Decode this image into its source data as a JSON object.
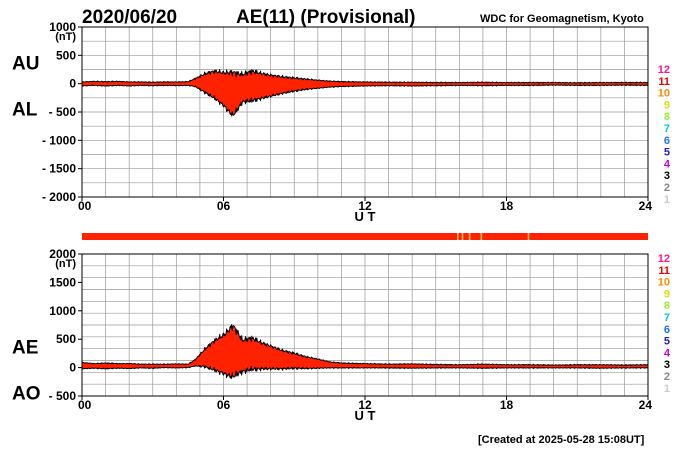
{
  "header": {
    "date": "2020/06/20",
    "title": "AE(11) (Provisional)",
    "source": "WDC for Geomagnetism, Kyoto"
  },
  "footer": {
    "created": "[Created at 2025-05-28 15:08UT]"
  },
  "colors": {
    "fill": "#ff2200",
    "outline": "#000000",
    "grid": "#999999",
    "bar_main": "#ff2200",
    "bar_gap": "#ffbb66"
  },
  "station_legend": [
    {
      "label": "12",
      "color": "#ff1493"
    },
    {
      "label": "11",
      "color": "#ee0000"
    },
    {
      "label": "10",
      "color": "#ff8c00"
    },
    {
      "label": "9",
      "color": "#dddd00"
    },
    {
      "label": "8",
      "color": "#99ee33"
    },
    {
      "label": "7",
      "color": "#00ccdd"
    },
    {
      "label": "6",
      "color": "#1e6fff"
    },
    {
      "label": "5",
      "color": "#2020cc"
    },
    {
      "label": "4",
      "color": "#cc00cc"
    },
    {
      "label": "3",
      "color": "#000000"
    },
    {
      "label": "2",
      "color": "#888888"
    },
    {
      "label": "1",
      "color": "#cccccc"
    }
  ],
  "chart_data": [
    {
      "type": "area",
      "name": "upper",
      "upper_label": "AU",
      "lower_label": "AL",
      "unit_label": "(nT)",
      "xlabel": "U T",
      "xlim": [
        0,
        24
      ],
      "ylim": [
        -2000,
        1000
      ],
      "x_ticks": [
        0,
        6,
        12,
        18,
        24
      ],
      "x_tick_labels": [
        "00",
        "06",
        "12",
        "18",
        "24"
      ],
      "y_ticks": [
        1000,
        500,
        0,
        -500,
        -1000,
        -1500,
        -2000
      ],
      "y_tick_labels": [
        "1000",
        "500",
        "0",
        "- 500",
        "- 1000",
        "- 1500",
        "- 2000"
      ],
      "grid": true,
      "series": [
        {
          "name": "AU",
          "x": [
            0,
            0.5,
            1,
            1.5,
            2,
            2.5,
            3,
            3.5,
            4,
            4.5,
            4.8,
            5.2,
            5.6,
            6,
            6.4,
            6.8,
            7.2,
            7.6,
            8,
            8.5,
            9,
            9.5,
            10,
            10.5,
            11,
            12,
            13,
            14,
            15,
            16,
            17,
            18,
            19,
            20,
            21,
            22,
            23,
            24
          ],
          "y": [
            30,
            40,
            35,
            40,
            30,
            30,
            25,
            30,
            30,
            35,
            90,
            170,
            220,
            190,
            200,
            160,
            220,
            180,
            150,
            120,
            100,
            80,
            60,
            45,
            35,
            30,
            25,
            25,
            20,
            20,
            25,
            20,
            20,
            20,
            15,
            20,
            20,
            20
          ]
        },
        {
          "name": "AL",
          "x": [
            0,
            0.5,
            1,
            1.5,
            2,
            2.5,
            3,
            3.5,
            4,
            4.5,
            4.8,
            5.2,
            5.6,
            6,
            6.2,
            6.4,
            6.6,
            6.8,
            7.2,
            7.6,
            8,
            8.5,
            9,
            9.5,
            10,
            10.5,
            11,
            12,
            13,
            14,
            15,
            16,
            17,
            18,
            19,
            20,
            21,
            22,
            23,
            24
          ],
          "y": [
            -40,
            -30,
            -40,
            -30,
            -40,
            -30,
            -35,
            -30,
            -35,
            -30,
            -50,
            -150,
            -250,
            -380,
            -480,
            -560,
            -450,
            -320,
            -300,
            -260,
            -220,
            -170,
            -130,
            -100,
            -80,
            -60,
            -50,
            -40,
            -35,
            -40,
            -35,
            -30,
            -35,
            -30,
            -30,
            -25,
            -30,
            -30,
            -25,
            -30
          ]
        }
      ]
    },
    {
      "type": "area",
      "name": "lower",
      "upper_label": "AE",
      "lower_label": "AO",
      "unit_label": "(nT)",
      "xlabel": "U T",
      "xlim": [
        0,
        24
      ],
      "ylim": [
        -500,
        2000
      ],
      "x_ticks": [
        0,
        6,
        12,
        18,
        24
      ],
      "x_tick_labels": [
        "00",
        "06",
        "12",
        "18",
        "24"
      ],
      "y_ticks": [
        2000,
        1500,
        1000,
        500,
        0,
        -500
      ],
      "y_tick_labels": [
        "2000",
        "1500",
        "1000",
        "500",
        "0",
        "- 500"
      ],
      "grid": true,
      "series": [
        {
          "name": "AE",
          "x": [
            0,
            0.5,
            1,
            1.5,
            2,
            2.5,
            3,
            3.5,
            4,
            4.5,
            4.8,
            5.2,
            5.6,
            6,
            6.2,
            6.4,
            6.6,
            6.8,
            7.2,
            7.6,
            8,
            8.5,
            9,
            9.5,
            10,
            10.5,
            11,
            12,
            13,
            14,
            15,
            16,
            17,
            18,
            19,
            20,
            21,
            22,
            23,
            24
          ],
          "y": [
            90,
            70,
            80,
            70,
            70,
            60,
            60,
            60,
            65,
            60,
            140,
            320,
            470,
            570,
            650,
            740,
            620,
            480,
            520,
            440,
            380,
            300,
            250,
            190,
            150,
            100,
            80,
            70,
            60,
            65,
            55,
            50,
            60,
            50,
            50,
            45,
            50,
            50,
            45,
            50
          ]
        },
        {
          "name": "AO",
          "x": [
            0,
            0.5,
            1,
            1.5,
            2,
            2.5,
            3,
            3.5,
            4,
            4.5,
            4.8,
            5.2,
            5.6,
            6,
            6.2,
            6.4,
            6.6,
            6.8,
            7.2,
            7.6,
            8,
            8.5,
            9,
            9.5,
            10,
            10.5,
            11,
            12,
            13,
            14,
            15,
            16,
            17,
            18,
            19,
            20,
            21,
            22,
            23,
            24
          ],
          "y": [
            -20,
            -10,
            -20,
            -10,
            -15,
            -5,
            -10,
            0,
            -5,
            0,
            30,
            20,
            -40,
            -100,
            -140,
            -160,
            -110,
            -70,
            -30,
            -20,
            -20,
            -20,
            -10,
            -15,
            -10,
            -5,
            -5,
            -5,
            -5,
            -10,
            -5,
            -5,
            -10,
            -5,
            -5,
            -5,
            -5,
            -10,
            -5,
            -5
          ]
        }
      ]
    }
  ],
  "coverage_bar": {
    "range": [
      0,
      24
    ],
    "gaps": [
      15.9,
      16.1,
      16.4,
      16.9,
      18.9
    ]
  }
}
